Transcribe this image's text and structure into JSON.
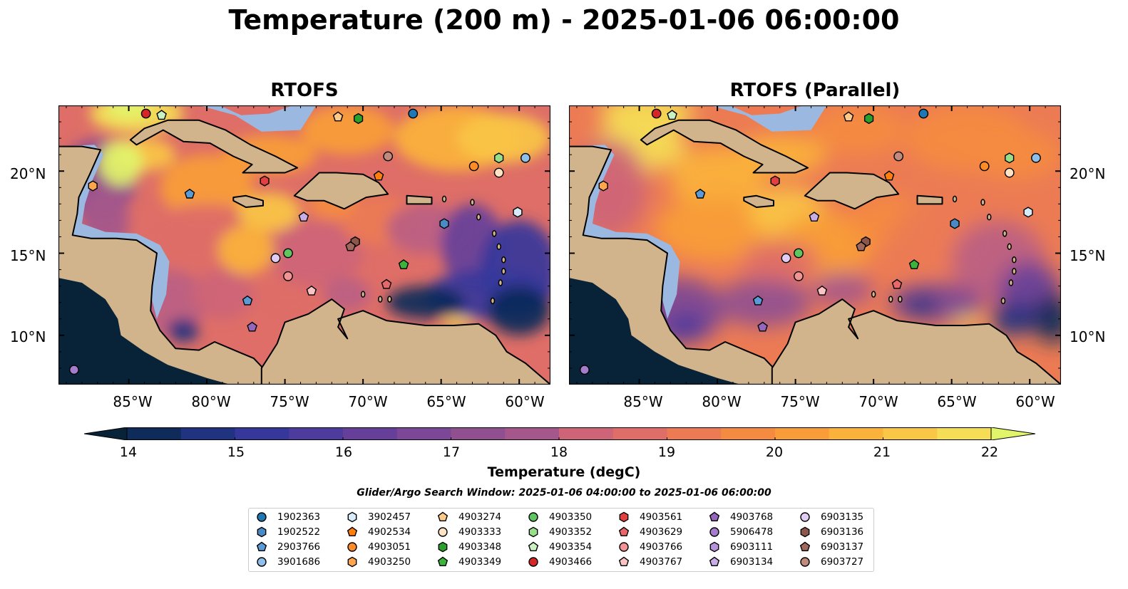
{
  "title": "Temperature (200 m) - 2025-01-06 06:00:00",
  "panels": [
    {
      "title": "RTOFS"
    },
    {
      "title": "RTOFS (Parallel)"
    }
  ],
  "map": {
    "lon_range": [
      -89.5,
      -58
    ],
    "lat_range": [
      7,
      24
    ],
    "x_ticks": [
      "85°W",
      "80°W",
      "75°W",
      "70°W",
      "65°W",
      "60°W"
    ],
    "y_ticks": [
      "20°N",
      "15°N",
      "10°N"
    ],
    "land_color": "#d2b48c",
    "shelf_color": "#9bb8e0",
    "pacific_color": "#082338"
  },
  "colorbar": {
    "label": "Temperature (degC)",
    "ticks": [
      "14",
      "15",
      "16",
      "17",
      "18",
      "19",
      "20",
      "21",
      "22"
    ],
    "range": [
      14,
      22
    ],
    "colors": [
      "#082338",
      "#0e2b5a",
      "#1f3380",
      "#36379b",
      "#4d3b9d",
      "#663f9a",
      "#7c4796",
      "#905090",
      "#a5578b",
      "#bb5e83",
      "#cd6477",
      "#de6e67",
      "#ec7b54",
      "#f58b40",
      "#f99d38",
      "#fbb23a",
      "#fac645",
      "#f5dd55",
      "#e2f56a"
    ]
  },
  "search_window": "Glider/Argo Search Window: 2025-01-06 04:00:00 to 2025-01-06 06:00:00",
  "legend": [
    {
      "id": "1902363",
      "color": "#1f77b4",
      "shape": "circle"
    },
    {
      "id": "1902522",
      "color": "#4a8ac4",
      "shape": "hexagon"
    },
    {
      "id": "2903766",
      "color": "#5b9bd5",
      "shape": "pentagon"
    },
    {
      "id": "3901686",
      "color": "#8fbfe8",
      "shape": "circle"
    },
    {
      "id": "3902457",
      "color": "#d6ecfb",
      "shape": "hexagon"
    },
    {
      "id": "4902534",
      "color": "#ff7f0e",
      "shape": "pentagon"
    },
    {
      "id": "4903051",
      "color": "#ff8c26",
      "shape": "circle"
    },
    {
      "id": "4903250",
      "color": "#ffa64d",
      "shape": "hexagon"
    },
    {
      "id": "4903274",
      "color": "#ffc98a",
      "shape": "pentagon"
    },
    {
      "id": "4903333",
      "color": "#ffe3c4",
      "shape": "circle"
    },
    {
      "id": "4903348",
      "color": "#2ca02c",
      "shape": "hexagon"
    },
    {
      "id": "4903349",
      "color": "#3cb43c",
      "shape": "pentagon"
    },
    {
      "id": "4903350",
      "color": "#5fc65f",
      "shape": "circle"
    },
    {
      "id": "4903352",
      "color": "#98df8a",
      "shape": "hexagon"
    },
    {
      "id": "4903354",
      "color": "#c9f2c0",
      "shape": "pentagon"
    },
    {
      "id": "4903466",
      "color": "#d62728",
      "shape": "circle"
    },
    {
      "id": "4903561",
      "color": "#e04040",
      "shape": "hexagon"
    },
    {
      "id": "4903629",
      "color": "#e8686a",
      "shape": "pentagon"
    },
    {
      "id": "4903766",
      "color": "#f29494",
      "shape": "circle"
    },
    {
      "id": "4903767",
      "color": "#fbc3c3",
      "shape": "pentagon"
    },
    {
      "id": "4903768",
      "color": "#9467bd",
      "shape": "pentagon"
    },
    {
      "id": "5906478",
      "color": "#a37dcb",
      "shape": "circle"
    },
    {
      "id": "6903111",
      "color": "#b693d8",
      "shape": "hexagon"
    },
    {
      "id": "6903134",
      "color": "#c9aee6",
      "shape": "pentagon"
    },
    {
      "id": "6903135",
      "color": "#e1cdf4",
      "shape": "circle"
    },
    {
      "id": "6903136",
      "color": "#8c564b",
      "shape": "hexagon"
    },
    {
      "id": "6903137",
      "color": "#a0685c",
      "shape": "pentagon"
    },
    {
      "id": "6903727",
      "color": "#c08b7d",
      "shape": "circle"
    }
  ],
  "floats": [
    {
      "id": "4903466",
      "lon": -83.9,
      "lat": 23.5
    },
    {
      "id": "4903354",
      "lon": -82.9,
      "lat": 23.4
    },
    {
      "id": "4903274",
      "lon": -71.6,
      "lat": 23.3
    },
    {
      "id": "4903348",
      "lon": -70.3,
      "lat": 23.2
    },
    {
      "id": "1902363",
      "lon": -66.8,
      "lat": 23.5
    },
    {
      "id": "6903727",
      "lon": -68.4,
      "lat": 20.9
    },
    {
      "id": "4903051",
      "lon": -62.9,
      "lat": 20.3
    },
    {
      "id": "4903352",
      "lon": -61.3,
      "lat": 20.8
    },
    {
      "id": "3901686",
      "lon": -59.6,
      "lat": 20.8
    },
    {
      "id": "4903333",
      "lon": -61.3,
      "lat": 19.9
    },
    {
      "id": "4902534",
      "lon": -69.0,
      "lat": 19.7
    },
    {
      "id": "4903561",
      "lon": -76.3,
      "lat": 19.4
    },
    {
      "id": "4903250",
      "lon": -87.3,
      "lat": 19.1
    },
    {
      "id": "2903766",
      "lon": -81.1,
      "lat": 18.6
    },
    {
      "id": "6903134",
      "lon": -73.8,
      "lat": 17.2
    },
    {
      "id": "1902522",
      "lon": -64.8,
      "lat": 16.8
    },
    {
      "id": "3902457",
      "lon": -60.1,
      "lat": 17.5
    },
    {
      "id": "6903136",
      "lon": -70.5,
      "lat": 15.7
    },
    {
      "id": "6903137",
      "lon": -70.8,
      "lat": 15.4
    },
    {
      "id": "4903350",
      "lon": -74.8,
      "lat": 15.0
    },
    {
      "id": "6903135",
      "lon": -75.6,
      "lat": 14.7
    },
    {
      "id": "4903349",
      "lon": -67.4,
      "lat": 14.3
    },
    {
      "id": "4903766",
      "lon": -74.8,
      "lat": 13.6
    },
    {
      "id": "4903629",
      "lon": -68.5,
      "lat": 13.1
    },
    {
      "id": "4903767",
      "lon": -73.3,
      "lat": 12.7
    },
    {
      "id": "2903766",
      "lon": -77.4,
      "lat": 12.1
    },
    {
      "id": "4903768",
      "lon": -77.1,
      "lat": 10.5
    },
    {
      "id": "5906478",
      "lon": -88.5,
      "lat": 7.9
    }
  ]
}
